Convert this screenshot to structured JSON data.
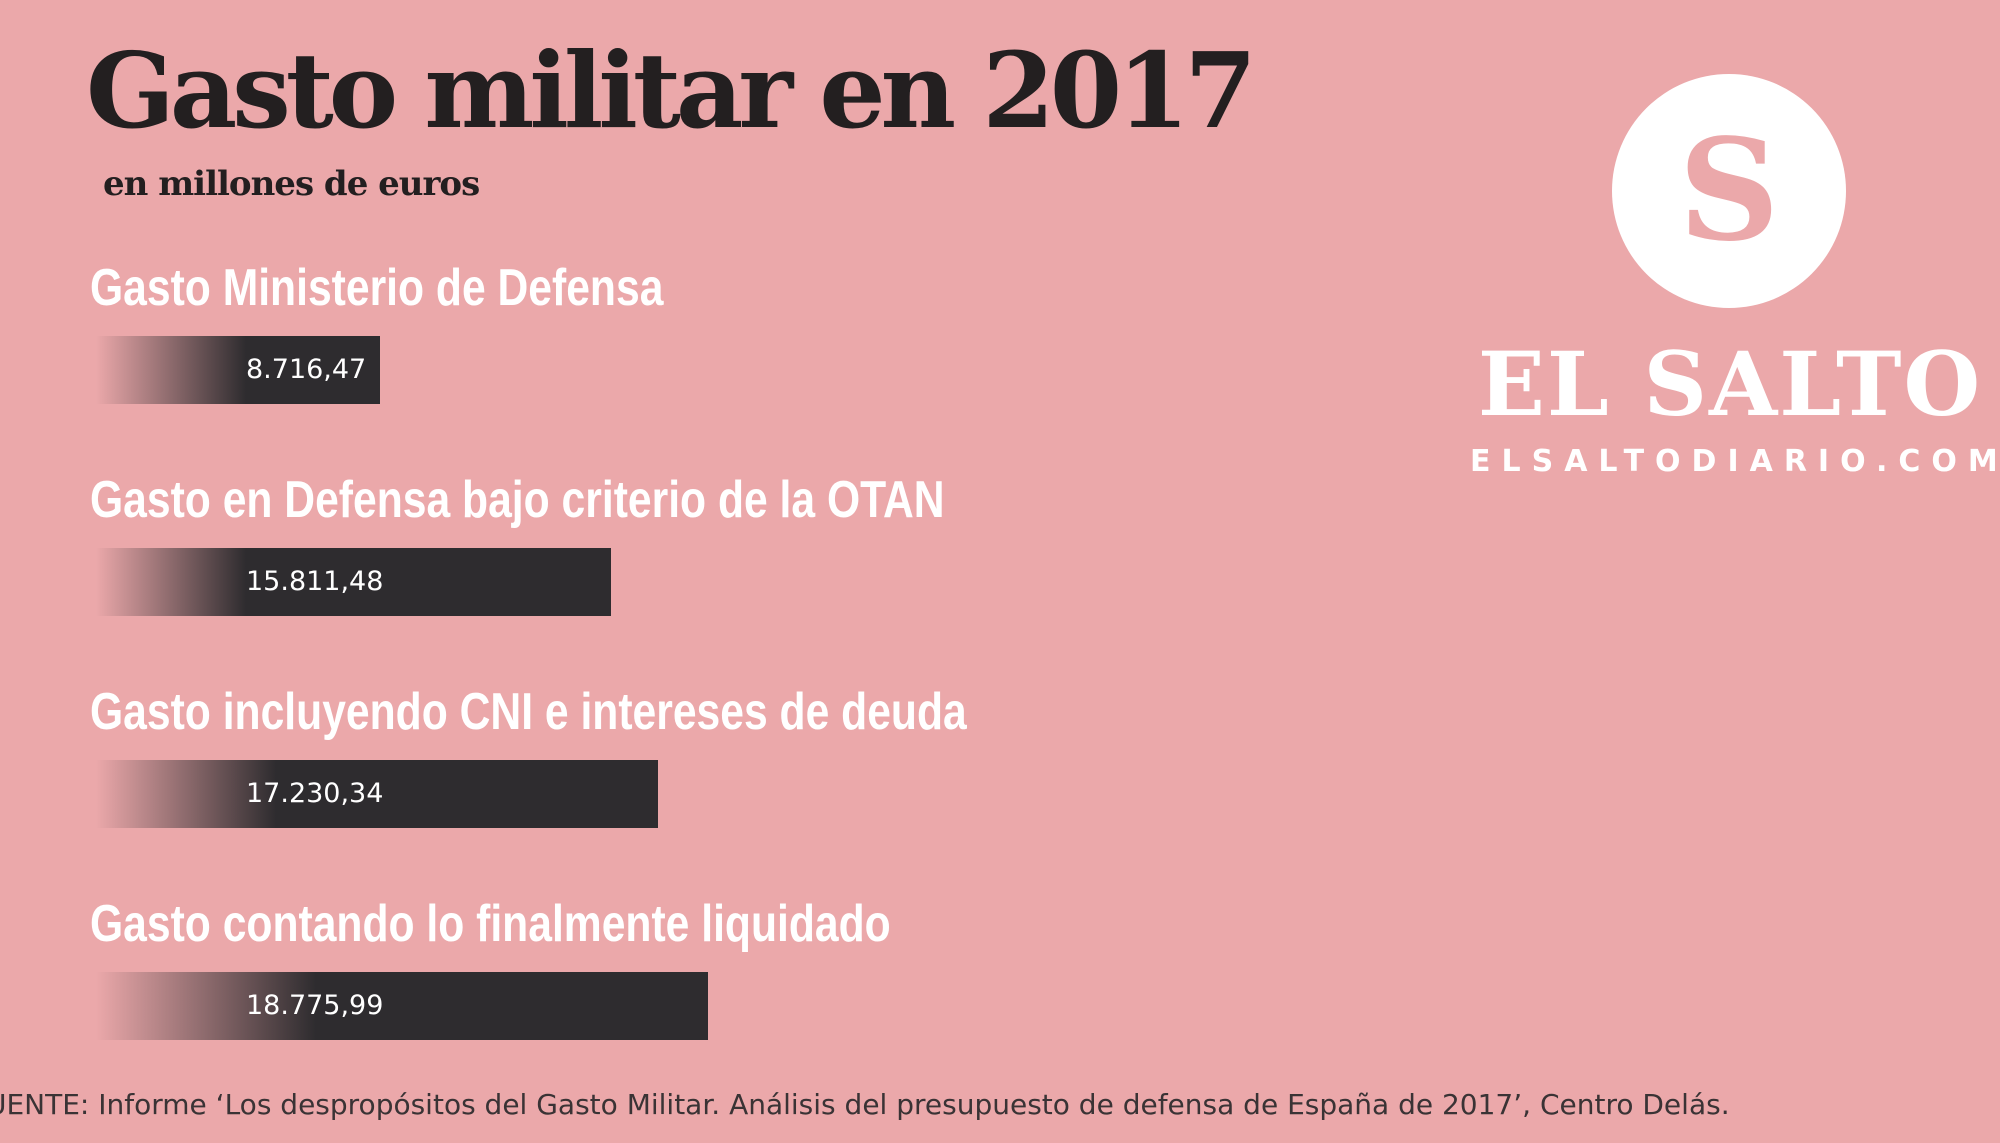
{
  "header": {
    "title": "Gasto militar en 2017",
    "subtitle": "en millones de euros"
  },
  "chart_data": {
    "type": "bar",
    "orientation": "horizontal",
    "title": "Gasto militar en 2017",
    "subtitle": "en millones de euros",
    "categories": [
      "Gasto Ministerio de Defensa",
      "Gasto en Defensa bajo criterio de la OTAN",
      "Gasto incluyendo CNI e intereses de deuda",
      "Gasto contando lo finalmente liquidado"
    ],
    "values": [
      8716.47,
      15811.48,
      17230.34,
      18775.99
    ],
    "value_labels": [
      "8.716,47",
      "15.811,48",
      "17.230,34",
      "18.775,99"
    ],
    "xlabel": "",
    "ylabel": "",
    "grid": false,
    "legend": "none",
    "colors": {
      "bar": "#2e2c2f",
      "label": "#ffffff",
      "background": "#eba8aa"
    }
  },
  "source": {
    "text": "UENTE:  Informe ‘Los despropósitos del Gasto Militar. Análisis del presupuesto de defensa de España de 2017’, Centro Delás."
  },
  "logo": {
    "letter": "S",
    "name": "EL SALTO",
    "url": "ELSALTODIARIO.COM"
  }
}
